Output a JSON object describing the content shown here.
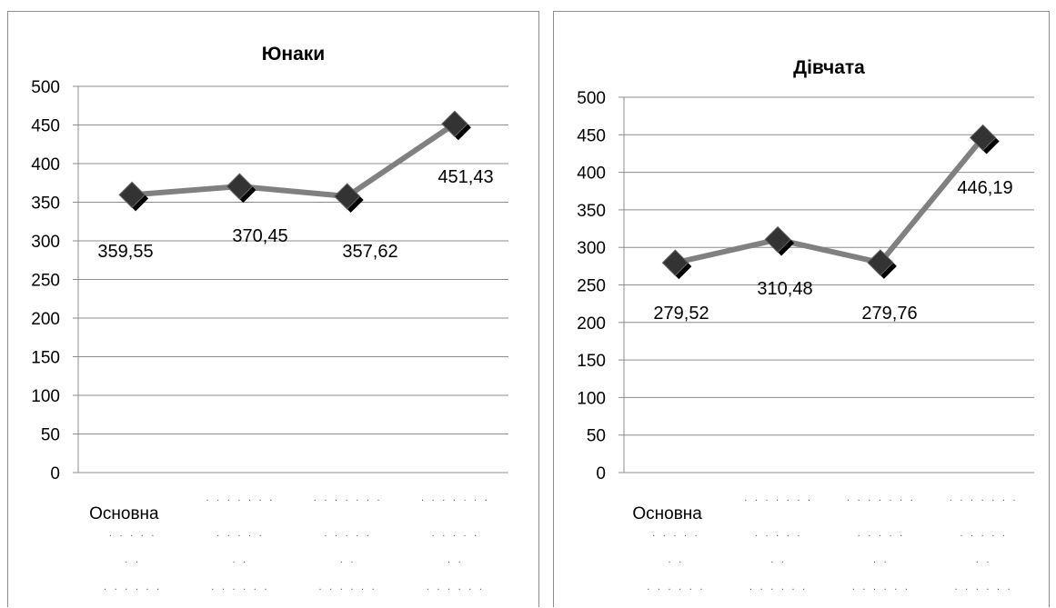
{
  "chart_data": [
    {
      "type": "line",
      "title": "Юнаки",
      "categories": [
        "Основна",
        "",
        "",
        ""
      ],
      "values": [
        359.55,
        370.45,
        357.62,
        451.43
      ],
      "data_labels": [
        "359,55",
        "370,45",
        "357,62",
        "451,43"
      ],
      "ylim": [
        0,
        500
      ],
      "ytick_step": 50,
      "grid": true,
      "legend": "none",
      "line_color": "#808080",
      "marker": "diamond",
      "marker_color": "#333333"
    },
    {
      "type": "line",
      "title": "Дівчата",
      "categories": [
        "Основна",
        "",
        "",
        ""
      ],
      "values": [
        279.52,
        310.48,
        279.76,
        446.19
      ],
      "data_labels": [
        "279,52",
        "310,48",
        "279,76",
        "446,19"
      ],
      "ylim": [
        0,
        500
      ],
      "ytick_step": 50,
      "grid": true,
      "legend": "none",
      "line_color": "#808080",
      "marker": "diamond",
      "marker_color": "#333333"
    }
  ]
}
